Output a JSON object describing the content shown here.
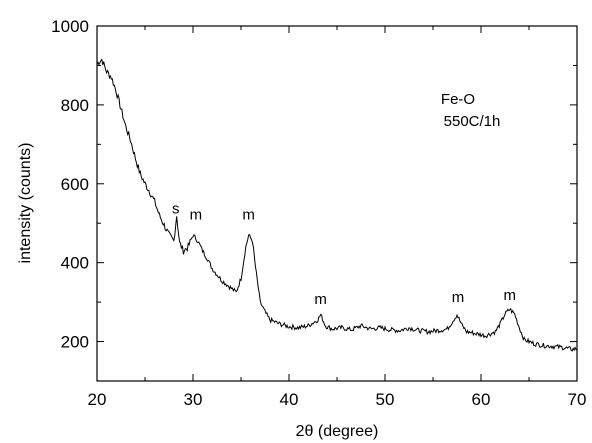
{
  "chart_data": {
    "type": "line",
    "title": "",
    "xlabel": "2θ (degree)",
    "ylabel": "intensity (counts)",
    "xlim": [
      20,
      70
    ],
    "ylim": [
      100,
      1000
    ],
    "xticks": [
      20,
      30,
      40,
      50,
      60,
      70
    ],
    "yticks": [
      200,
      400,
      600,
      800,
      1000
    ],
    "grid": false,
    "line_color": "#000000",
    "text_box": [
      "Fe-O",
      "550C/1h"
    ],
    "annotations": [
      {
        "text": "s",
        "x": 28.2,
        "y": 525
      },
      {
        "text": "m",
        "x": 30.3,
        "y": 510
      },
      {
        "text": "m",
        "x": 35.8,
        "y": 510
      },
      {
        "text": "m",
        "x": 43.3,
        "y": 295
      },
      {
        "text": "m",
        "x": 57.6,
        "y": 300
      },
      {
        "text": "m",
        "x": 63.0,
        "y": 305
      }
    ],
    "series": [
      {
        "values": [
          [
            20.0,
            905
          ],
          [
            20.5,
            915
          ],
          [
            21.0,
            885
          ],
          [
            21.5,
            870
          ],
          [
            22.0,
            835
          ],
          [
            22.5,
            790
          ],
          [
            23.0,
            745
          ],
          [
            23.5,
            710
          ],
          [
            24.0,
            665
          ],
          [
            24.5,
            625
          ],
          [
            25.0,
            600
          ],
          [
            25.5,
            580
          ],
          [
            26.0,
            555
          ],
          [
            26.5,
            520
          ],
          [
            27.0,
            495
          ],
          [
            27.5,
            470
          ],
          [
            28.0,
            455
          ],
          [
            28.3,
            520
          ],
          [
            28.6,
            450
          ],
          [
            29.0,
            430
          ],
          [
            29.5,
            440
          ],
          [
            30.0,
            470
          ],
          [
            30.5,
            455
          ],
          [
            31.0,
            430
          ],
          [
            31.5,
            410
          ],
          [
            32.0,
            385
          ],
          [
            32.5,
            370
          ],
          [
            33.0,
            355
          ],
          [
            33.5,
            345
          ],
          [
            34.0,
            335
          ],
          [
            34.5,
            325
          ],
          [
            35.0,
            360
          ],
          [
            35.5,
            440
          ],
          [
            35.8,
            470
          ],
          [
            36.2,
            455
          ],
          [
            36.5,
            390
          ],
          [
            37.0,
            300
          ],
          [
            37.5,
            275
          ],
          [
            38.0,
            255
          ],
          [
            38.5,
            250
          ],
          [
            39.0,
            245
          ],
          [
            40.0,
            238
          ],
          [
            41.0,
            235
          ],
          [
            42.0,
            240
          ],
          [
            43.0,
            255
          ],
          [
            43.3,
            268
          ],
          [
            43.8,
            240
          ],
          [
            44.5,
            232
          ],
          [
            45.5,
            235
          ],
          [
            46.5,
            230
          ],
          [
            47.5,
            240
          ],
          [
            48.5,
            232
          ],
          [
            49.5,
            235
          ],
          [
            50.5,
            230
          ],
          [
            51.5,
            228
          ],
          [
            52.5,
            235
          ],
          [
            53.5,
            228
          ],
          [
            54.5,
            225
          ],
          [
            55.5,
            228
          ],
          [
            56.5,
            232
          ],
          [
            57.0,
            250
          ],
          [
            57.5,
            268
          ],
          [
            58.0,
            242
          ],
          [
            58.5,
            225
          ],
          [
            59.5,
            220
          ],
          [
            60.5,
            215
          ],
          [
            61.5,
            225
          ],
          [
            62.0,
            245
          ],
          [
            62.5,
            270
          ],
          [
            63.0,
            282
          ],
          [
            63.5,
            270
          ],
          [
            64.0,
            235
          ],
          [
            64.5,
            205
          ],
          [
            65.5,
            195
          ],
          [
            66.5,
            190
          ],
          [
            67.5,
            188
          ],
          [
            68.5,
            185
          ],
          [
            69.5,
            180
          ],
          [
            70.0,
            182
          ]
        ]
      }
    ]
  }
}
